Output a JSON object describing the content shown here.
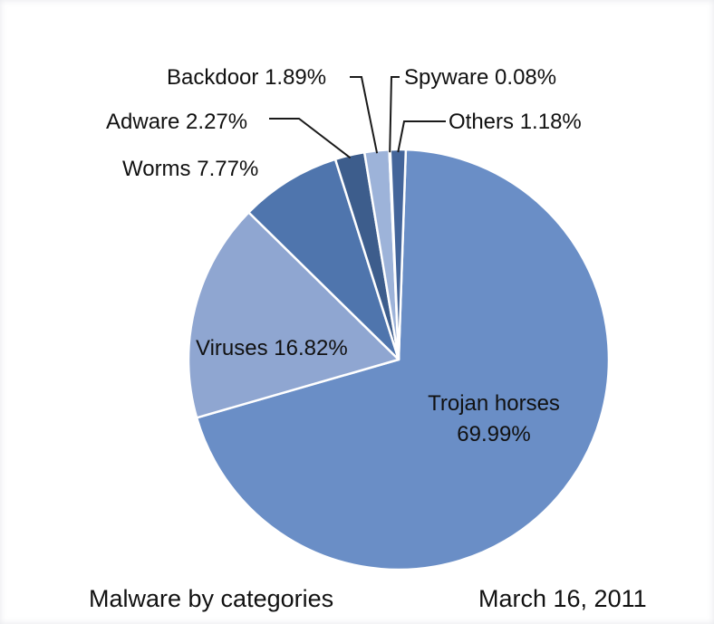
{
  "chart_data": {
    "type": "pie",
    "title": "Malware by categories",
    "date": "March 16, 2011",
    "slices": [
      {
        "key": "trojan",
        "label": "Trojan horses",
        "value_label": "69.99%",
        "value": 69.99,
        "color": "#6a8ec6"
      },
      {
        "key": "viruses",
        "label": "Viruses",
        "value_label": "16.82%",
        "value": 16.82,
        "color": "#8fa6d1"
      },
      {
        "key": "worms",
        "label": "Worms",
        "value_label": "7.77%",
        "value": 7.77,
        "color": "#4f75ad"
      },
      {
        "key": "adware",
        "label": "Adware",
        "value_label": "2.27%",
        "value": 2.27,
        "color": "#3d5d8c"
      },
      {
        "key": "backdoor",
        "label": "Backdoor",
        "value_label": "1.89%",
        "value": 1.89,
        "color": "#9db3d9"
      },
      {
        "key": "spyware",
        "label": "Spyware",
        "value_label": "0.08%",
        "value": 0.08,
        "color": "#2f4a73"
      },
      {
        "key": "others",
        "label": "Others",
        "value_label": "1.18%",
        "value": 1.18,
        "color": "#44659a"
      }
    ]
  }
}
